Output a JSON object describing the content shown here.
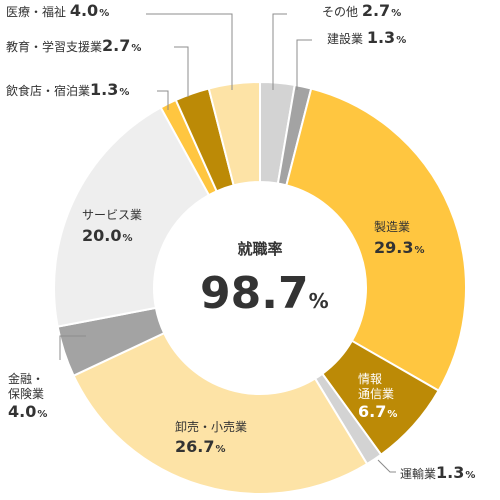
{
  "chart_data": {
    "type": "pie",
    "donut": true,
    "center": {
      "label": "就職率",
      "value": "98.7",
      "unit": "%"
    },
    "unit": "%",
    "slices": [
      {
        "label": "その他",
        "value": 2.7,
        "color": "#d3d3d3"
      },
      {
        "label": "建設業",
        "value": 1.3,
        "color": "#a3a3a3"
      },
      {
        "label": "製造業",
        "value": 29.3,
        "color": "#ffc640"
      },
      {
        "label": "情報通信業",
        "value": 6.7,
        "color": "#bc8a06"
      },
      {
        "label": "運輸業",
        "value": 1.3,
        "color": "#d3d3d3"
      },
      {
        "label": "卸売・小売業",
        "value": 26.7,
        "color": "#fde3a6"
      },
      {
        "label": "金融・保険業",
        "value": 4.0,
        "color": "#a3a3a3"
      },
      {
        "label": "サービス業",
        "value": 20.0,
        "color": "#eeeeee"
      },
      {
        "label": "飲食店・宿泊業",
        "value": 1.3,
        "color": "#ffc640"
      },
      {
        "label": "教育・学習支援業",
        "value": 2.7,
        "color": "#bc8a06"
      },
      {
        "label": "医療・福祉",
        "value": 4.0,
        "color": "#fde3a6"
      }
    ]
  },
  "labels": {
    "other": {
      "name": "その他",
      "value": "2.7",
      "unit": "%"
    },
    "construction": {
      "name": "建設業",
      "value": "1.3",
      "unit": "%"
    },
    "manufacturing": {
      "name": "製造業",
      "value": "29.3",
      "unit": "%"
    },
    "it": {
      "name1": "情報",
      "name2": "通信業",
      "value": "6.7",
      "unit": "%"
    },
    "transport": {
      "name": "運輸業",
      "value": "1.3",
      "unit": "%"
    },
    "retail": {
      "name": "卸売・小売業",
      "value": "26.7",
      "unit": "%"
    },
    "finance": {
      "name1": "金融・",
      "name2": "保険業",
      "value": "4.0",
      "unit": "%"
    },
    "service": {
      "name": "サービス業",
      "value": "20.0",
      "unit": "%"
    },
    "food": {
      "name": "飲食店・宿泊業",
      "value": "1.3",
      "unit": "%"
    },
    "education": {
      "name": "教育・学習支援業",
      "value": "2.7",
      "unit": "%"
    },
    "medical": {
      "name": "医療・福祉",
      "value": "4.0",
      "unit": "%"
    }
  }
}
